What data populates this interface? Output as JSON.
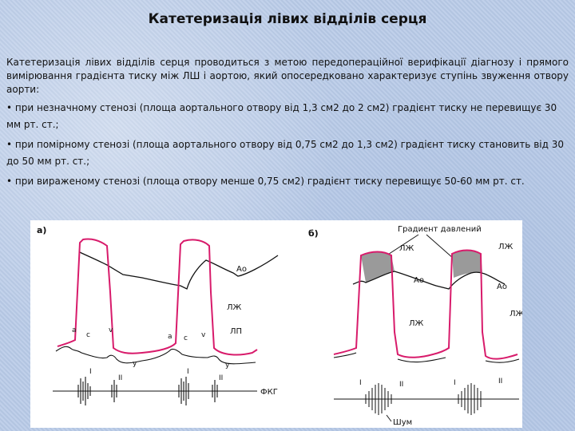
{
  "title": "Катетеризація лівих відділів серця",
  "intro": "Катетеризація лівих відділів серця проводиться з метою передопераційної верифікації діагнозу і прямого вимірювання градієнта тиску між ЛШ і аортою, який опосередковано характеризує ступінь звуження отвору аорти:",
  "bullets": [
    "• при незначному стенозі (площа аортального отвору від 1,3 см2 до 2 см2) градієнт тиску не перевищує 30 мм рт. ст.;",
    "• при помірному стенозі (площа аортального отвору від 0,75 см2 до 1,3 см2) градієнт тиску становить від 30 до 50 мм рт. ст.;",
    "• при вираженому стенозі (площа отвору менше 0,75 см2) градієнт тиску перевищує 50-60 мм рт. ст."
  ],
  "figure": {
    "panel_a": {
      "letter": "а)",
      "label_ao": "Ао",
      "label_lv": "ЛЖ",
      "label_la": "ЛП",
      "label_pcg": "ФКГ",
      "wave_a": "а",
      "wave_c": "с",
      "wave_v": "v",
      "wave_y": "у",
      "tone_1": "I",
      "tone_2": "II"
    },
    "panel_b": {
      "letter": "б)",
      "gradient_label": "Градиент давлений",
      "label_lv": "ЛЖ",
      "label_ao": "Ао",
      "label_murmur": "Шум",
      "tone_1": "I",
      "tone_2": "II"
    },
    "colors": {
      "lv_curve": "#d81b6b",
      "gradient_fill": "#9a9a9a",
      "ink": "#111111"
    }
  }
}
